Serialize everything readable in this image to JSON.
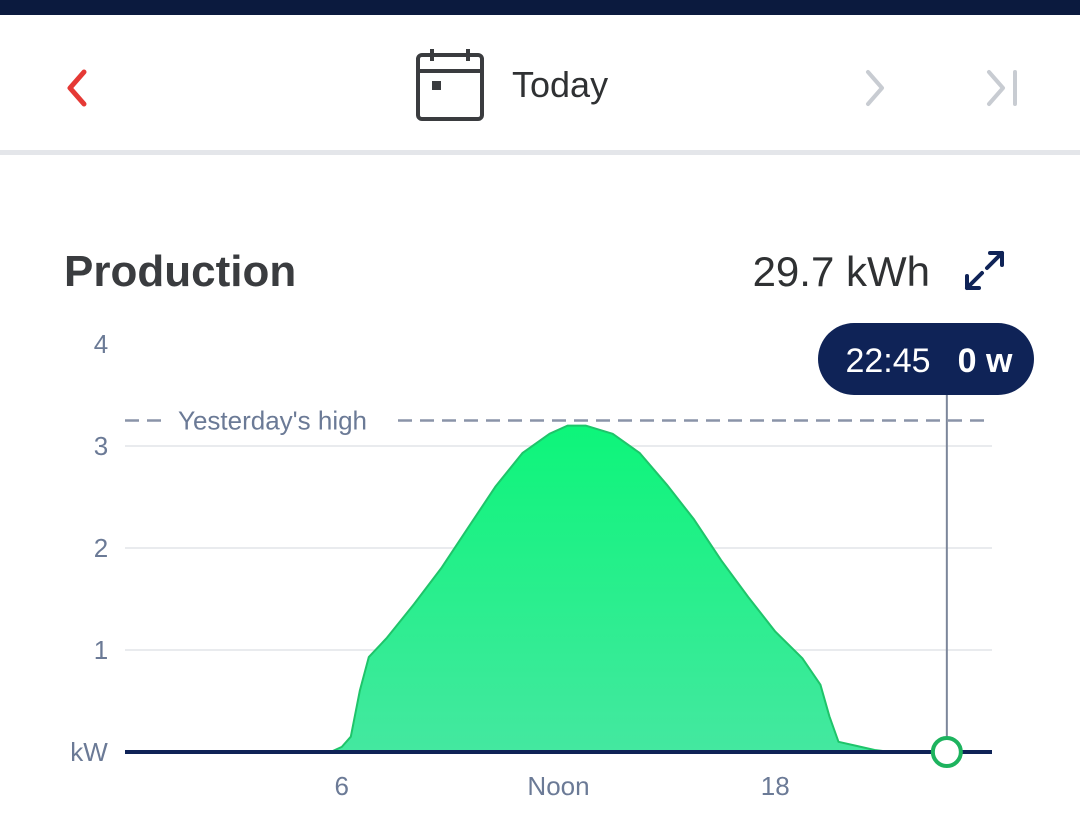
{
  "header": {
    "date_label": "Today",
    "prev_icon": "chevron-left-icon",
    "next_icon": "chevron-right-icon",
    "last_icon": "skip-to-end-icon",
    "calendar_icon": "calendar-icon"
  },
  "production": {
    "title": "Production",
    "total": "29.7 kWh",
    "expand_icon": "expand-icon"
  },
  "colors": {
    "accent_red": "#e53935",
    "navy": "#0f2357",
    "fill_green_top": "#0df57a",
    "fill_green_bottom": "#44e8a0",
    "axis_text": "#6b7a96",
    "disabled_icon": "#c8ccd2"
  },
  "chart_data": {
    "type": "area",
    "xlabel": "",
    "ylabel": "kW",
    "xlim": [
      0,
      24
    ],
    "ylim": [
      0,
      4
    ],
    "y_ticks": [
      {
        "value": 1,
        "label": "1"
      },
      {
        "value": 2,
        "label": "2"
      },
      {
        "value": 3,
        "label": "3"
      },
      {
        "value": 4,
        "label": "4"
      }
    ],
    "y_unit_label": "kW",
    "x_ticks": [
      {
        "value": 6,
        "label": "6"
      },
      {
        "value": 12,
        "label": "Noon"
      },
      {
        "value": 18,
        "label": "18"
      }
    ],
    "grid": true,
    "series": [
      {
        "x": [
          4.75,
          5.75,
          6.0,
          6.25,
          6.5,
          6.75,
          7.25,
          8.0,
          8.75,
          9.5,
          10.25,
          11.0,
          11.75,
          12.25,
          12.75,
          13.5,
          14.25,
          15.0,
          15.75,
          16.5,
          17.25,
          18.0,
          18.75,
          19.25,
          19.5,
          19.75,
          20.25,
          20.75,
          21.2
        ],
        "y": [
          0.0,
          0.01,
          0.05,
          0.15,
          0.6,
          0.93,
          1.12,
          1.45,
          1.8,
          2.2,
          2.6,
          2.93,
          3.12,
          3.2,
          3.2,
          3.12,
          2.93,
          2.62,
          2.28,
          1.88,
          1.52,
          1.18,
          0.92,
          0.66,
          0.35,
          0.1,
          0.06,
          0.02,
          0.0
        ]
      }
    ],
    "reference_line": {
      "label": "Yesterday's high",
      "value": 3.25
    },
    "cursor": {
      "x": 22.75,
      "time": "22:45",
      "value": "0 w"
    }
  }
}
